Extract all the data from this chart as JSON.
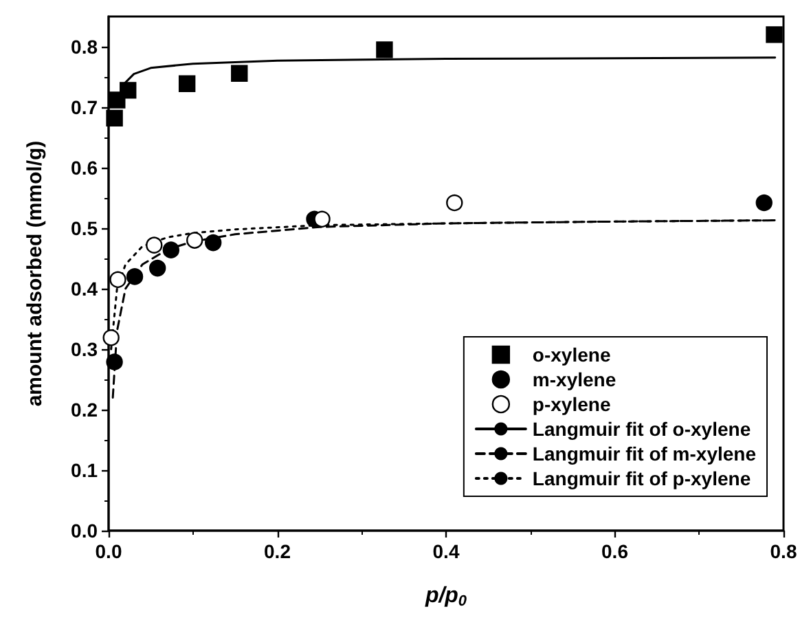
{
  "chart_data": {
    "type": "scatter",
    "xlabel": "p/p$_{0}$",
    "ylabel": "amount adsorbed (mmol/g)",
    "xlim": [
      0,
      0.8
    ],
    "xticks": [
      {
        "value": 0,
        "label": "0.0"
      },
      0.2,
      0.4,
      0.6,
      0.8
    ],
    "ylim": [
      0,
      0.85
    ],
    "yticks": [
      {
        "value": 0,
        "label": "0.0"
      },
      0.1,
      0.2,
      0.3,
      0.4,
      0.5,
      0.6,
      0.7,
      0.8
    ],
    "grid": false,
    "legend": "bottom right",
    "series": [
      {
        "name": "o-xylene",
        "marker": "square",
        "color": "#000000",
        "x": [
          0.007,
          0.01,
          0.023,
          0.093,
          0.155,
          0.327,
          0.789
        ],
        "values": [
          0.682,
          0.712,
          0.728,
          0.739,
          0.756,
          0.795,
          0.82
        ]
      },
      {
        "name": "m-xylene",
        "marker": "circle",
        "color": "#000000",
        "x": [
          0.007,
          0.031,
          0.058,
          0.074,
          0.124,
          0.244,
          0.777
        ],
        "values": [
          0.279,
          0.42,
          0.434,
          0.464,
          0.476,
          0.515,
          0.542
        ]
      },
      {
        "name": "p-xylene",
        "marker": "circle",
        "color": "#ffffff",
        "x": [
          0.003,
          0.011,
          0.054,
          0.102,
          0.253,
          0.41
        ],
        "values": [
          0.319,
          0.415,
          0.472,
          0.48,
          0.515,
          0.542
        ]
      },
      {
        "name": "Langmuir fit of o-xylene",
        "type": "line",
        "line_style": "solid",
        "color": "#000000",
        "x": [
          0.015,
          0.03,
          0.05,
          0.1,
          0.2,
          0.4,
          0.6,
          0.79
        ],
        "values": [
          0.734,
          0.755,
          0.765,
          0.772,
          0.777,
          0.78,
          0.781,
          0.782
        ]
      },
      {
        "name": "Langmuir fit of m-xylene",
        "type": "line",
        "line_style": "dashed",
        "color": "#000000",
        "x": [
          0.005,
          0.01,
          0.02,
          0.04,
          0.07,
          0.1,
          0.15,
          0.25,
          0.4,
          0.6,
          0.79
        ],
        "values": [
          0.22,
          0.33,
          0.4,
          0.44,
          0.465,
          0.478,
          0.49,
          0.502,
          0.508,
          0.511,
          0.513
        ]
      },
      {
        "name": "Langmuir fit of p-xylene",
        "type": "line",
        "line_style": "dotted",
        "color": "#000000",
        "x": [
          0.003,
          0.01,
          0.02,
          0.04,
          0.07,
          0.1,
          0.15,
          0.25,
          0.4,
          0.6,
          0.79
        ],
        "values": [
          0.3,
          0.4,
          0.44,
          0.47,
          0.485,
          0.492,
          0.498,
          0.505,
          0.508,
          0.511,
          0.513
        ]
      }
    ]
  }
}
